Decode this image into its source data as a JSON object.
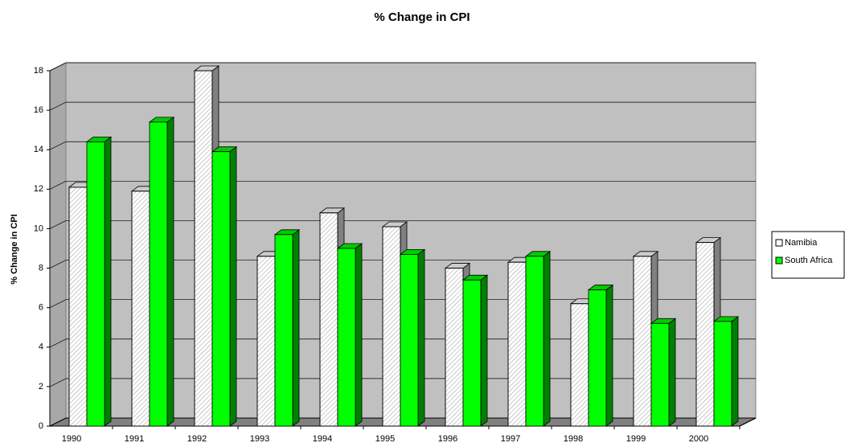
{
  "chart_data": {
    "type": "bar",
    "title": "% Change in CPI",
    "y_label": "% Change in CPI",
    "categories": [
      "1990",
      "1991",
      "1992",
      "1993",
      "1994",
      "1995",
      "1996",
      "1997",
      "1998",
      "1999",
      "2000"
    ],
    "series": [
      {
        "name": "Namibia",
        "color": "#ffffff",
        "values": [
          12.1,
          11.9,
          18,
          8.6,
          10.8,
          10.1,
          8.0,
          8.3,
          6.2,
          8.6,
          9.3
        ]
      },
      {
        "name": "South Africa",
        "color": "#00ff00",
        "values": [
          14.4,
          15.4,
          13.9,
          9.7,
          9.0,
          8.7,
          7.4,
          8.6,
          6.9,
          5.2,
          5.3
        ]
      }
    ],
    "ylim": [
      0,
      18
    ],
    "yticks": [
      0,
      2,
      4,
      6,
      8,
      10,
      12,
      14,
      16,
      18
    ],
    "grid": true,
    "legend": "right"
  }
}
